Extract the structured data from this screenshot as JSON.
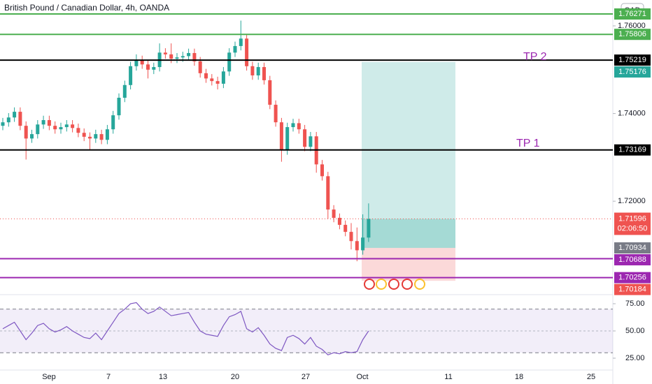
{
  "chart_data": {
    "type": "candlestick",
    "title": "British Pound / Canadian Dollar, 4h, OANDA",
    "currency": "CAD",
    "x_labels": [
      "Sep",
      "7",
      "13",
      "20",
      "27",
      "Oct",
      "11",
      "18",
      "25"
    ],
    "open": [
      1.7372,
      1.738,
      1.7391,
      1.7404,
      1.7372,
      1.7343,
      1.7353,
      1.7375,
      1.7385,
      1.7372,
      1.7364,
      1.7369,
      1.7375,
      1.7367,
      1.7356,
      1.7347,
      1.7343,
      1.7353,
      1.734,
      1.7364,
      1.7396,
      1.7436,
      1.7465,
      1.7508,
      1.7522,
      1.7512,
      1.75,
      1.7506,
      1.7539,
      1.7535,
      1.7525,
      1.7528,
      1.7531,
      1.7538,
      1.7519,
      1.7492,
      1.748,
      1.7474,
      1.7468,
      1.7496,
      1.7539,
      1.7554,
      1.7571,
      1.7508,
      1.7487,
      1.7506,
      1.7476,
      1.742,
      1.738,
      1.7316,
      1.7369,
      1.7378,
      1.7364,
      1.7324,
      1.7348,
      1.7284,
      1.7257,
      1.7181,
      1.7162,
      1.7146,
      1.713,
      1.7109,
      1.7088,
      1.7117
    ],
    "high": [
      1.739,
      1.7401,
      1.7414,
      1.7414,
      1.7382,
      1.7363,
      1.7385,
      1.7395,
      1.7395,
      1.7382,
      1.7379,
      1.7385,
      1.7385,
      1.7377,
      1.7366,
      1.7357,
      1.7363,
      1.7363,
      1.7374,
      1.7406,
      1.7446,
      1.7475,
      1.7518,
      1.7535,
      1.7532,
      1.7522,
      1.7516,
      1.756,
      1.7549,
      1.756,
      1.7538,
      1.7541,
      1.7548,
      1.7548,
      1.7529,
      1.7502,
      1.749,
      1.7484,
      1.7506,
      1.7549,
      1.7564,
      1.7612,
      1.7581,
      1.7518,
      1.7516,
      1.7516,
      1.7486,
      1.743,
      1.739,
      1.7379,
      1.7388,
      1.7388,
      1.7374,
      1.7358,
      1.7358,
      1.7294,
      1.7267,
      1.7191,
      1.7172,
      1.7156,
      1.715,
      1.714,
      1.717,
      1.7195
    ],
    "low": [
      1.7362,
      1.737,
      1.7381,
      1.7362,
      1.7295,
      1.7333,
      1.7343,
      1.7365,
      1.7362,
      1.7354,
      1.7354,
      1.7359,
      1.7357,
      1.7346,
      1.7337,
      1.7318,
      1.7333,
      1.733,
      1.733,
      1.7354,
      1.7386,
      1.7426,
      1.7455,
      1.7498,
      1.7502,
      1.748,
      1.749,
      1.7496,
      1.7525,
      1.7515,
      1.7515,
      1.7518,
      1.7521,
      1.7509,
      1.7482,
      1.747,
      1.7464,
      1.7455,
      1.7458,
      1.7486,
      1.7529,
      1.7544,
      1.7498,
      1.7477,
      1.7477,
      1.7466,
      1.741,
      1.737,
      1.729,
      1.7306,
      1.7359,
      1.7354,
      1.7314,
      1.7314,
      1.7265,
      1.7247,
      1.716,
      1.7152,
      1.7136,
      1.712,
      1.709,
      1.7063,
      1.7078,
      1.7107
    ],
    "close": [
      1.738,
      1.7391,
      1.7404,
      1.7372,
      1.7343,
      1.7353,
      1.7375,
      1.7385,
      1.7372,
      1.7364,
      1.7369,
      1.7375,
      1.7367,
      1.7356,
      1.7347,
      1.7343,
      1.7353,
      1.734,
      1.7364,
      1.7396,
      1.7436,
      1.7465,
      1.7508,
      1.7522,
      1.7512,
      1.75,
      1.7506,
      1.7539,
      1.7535,
      1.7525,
      1.7528,
      1.7531,
      1.7538,
      1.7519,
      1.7492,
      1.748,
      1.7474,
      1.7468,
      1.7496,
      1.7539,
      1.7554,
      1.7571,
      1.7508,
      1.7487,
      1.7506,
      1.7476,
      1.742,
      1.738,
      1.7316,
      1.7369,
      1.7378,
      1.7364,
      1.7324,
      1.7348,
      1.7284,
      1.7257,
      1.7181,
      1.7162,
      1.7146,
      1.713,
      1.7109,
      1.7088,
      1.7117,
      1.71596
    ],
    "up_color": "#26a69a",
    "down_color": "#ef5350",
    "ylim": [
      1.699,
      1.7659
    ],
    "yticks": [
      {
        "value": 1.72,
        "label": "1.72000"
      },
      {
        "value": 1.74,
        "label": "1.74000"
      },
      {
        "value": 1.76,
        "label": "1.76000"
      }
    ],
    "levels": [
      {
        "value": 1.76271,
        "color": "#4caf50"
      },
      {
        "value": 1.75806,
        "color": "#4caf50"
      },
      {
        "value": 1.75219,
        "color": "#000000"
      },
      {
        "value": 1.73169,
        "color": "#000000"
      },
      {
        "value": 1.70688,
        "color": "#9c27b0"
      },
      {
        "value": 1.70256,
        "color": "#9c27b0"
      }
    ],
    "annotations": [
      "TP 2",
      "TP 1"
    ],
    "annotation_color": "#9c27b0",
    "position": {
      "target": 1.75176,
      "entry": 1.70934,
      "stop": 1.70184
    },
    "last_price": 1.71596,
    "countdown": "02:06:50",
    "rsi": {
      "values": [
        52,
        55,
        58,
        50,
        42,
        48,
        55,
        57,
        52,
        49,
        51,
        54,
        50,
        47,
        44,
        43,
        48,
        42,
        50,
        58,
        66,
        70,
        75,
        76,
        70,
        66,
        68,
        72,
        68,
        64,
        65,
        66,
        67,
        58,
        50,
        47,
        46,
        45,
        55,
        63,
        65,
        68,
        52,
        49,
        53,
        46,
        38,
        34,
        32,
        44,
        46,
        43,
        38,
        44,
        36,
        33,
        28,
        30,
        29,
        31,
        30,
        31,
        42,
        50
      ],
      "color": "#7e57c2",
      "ylim": [
        14.1,
        82.7
      ],
      "band": [
        30,
        70
      ],
      "yticks": [
        {
          "value": 25,
          "label": "25.00"
        },
        {
          "value": 50,
          "label": "50.00"
        },
        {
          "value": 75,
          "label": "75.00"
        }
      ]
    }
  }
}
